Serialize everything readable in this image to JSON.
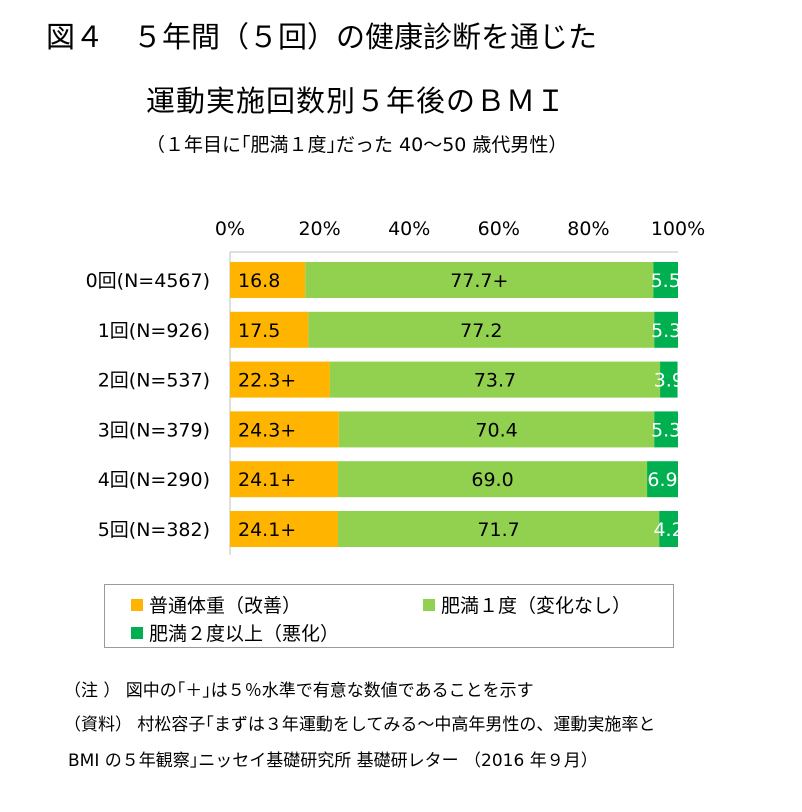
{
  "title_line1": "図４　５年間（５回）の健康診断を通じた",
  "title_line2": "運動実施回数別５年後のＢＭＩ",
  "subtitle": "（１年目に｢肥満１度｣だった 40～50 歳代男性）",
  "colors": {
    "normal": "#FFB400",
    "obese1": "#92D050",
    "obese2": "#00B050"
  },
  "chart_data": {
    "type": "bar",
    "orientation": "horizontal",
    "stacked": "percent",
    "categories": [
      "0回(N=4567)",
      "1回(N=926)",
      "2回(N=537)",
      "3回(N=379)",
      "4回(N=290)",
      "5回(N=382)"
    ],
    "series": [
      {
        "name": "普通体重（改善）",
        "values": [
          16.8,
          17.5,
          22.3,
          24.3,
          24.1,
          24.1
        ],
        "labels": [
          "16.8",
          "17.5",
          "22.3+",
          "24.3+",
          "24.1+",
          "24.1+"
        ]
      },
      {
        "name": "肥満１度（変化なし）",
        "values": [
          77.7,
          77.2,
          73.7,
          70.4,
          69.0,
          71.7
        ],
        "labels": [
          "77.7+",
          "77.2",
          "73.7",
          "70.4",
          "69.0",
          "71.7"
        ]
      },
      {
        "name": "肥満２度以上（悪化）",
        "values": [
          5.5,
          5.3,
          3.9,
          5.3,
          6.9,
          4.2
        ],
        "labels": [
          "5.5",
          "5.3",
          "3.9",
          "5.3",
          "6.9",
          "4.2"
        ]
      }
    ],
    "xlim": [
      0,
      100
    ],
    "ticks": [
      "0%",
      "20%",
      "40%",
      "60%",
      "80%",
      "100%"
    ],
    "legend_position": "bottom",
    "grid": false
  },
  "notes": {
    "note1": "（注 ） 図中の｢＋｣は５％水準で有意な数値であることを示す",
    "source1": "（資料） 村松容子｢まずは３年運動をしてみる～中高年男性の、運動実施率と",
    "source2": "BMI の５年観察｣ニッセイ基礎研究所 基礎研レター （2016 年９月）"
  }
}
